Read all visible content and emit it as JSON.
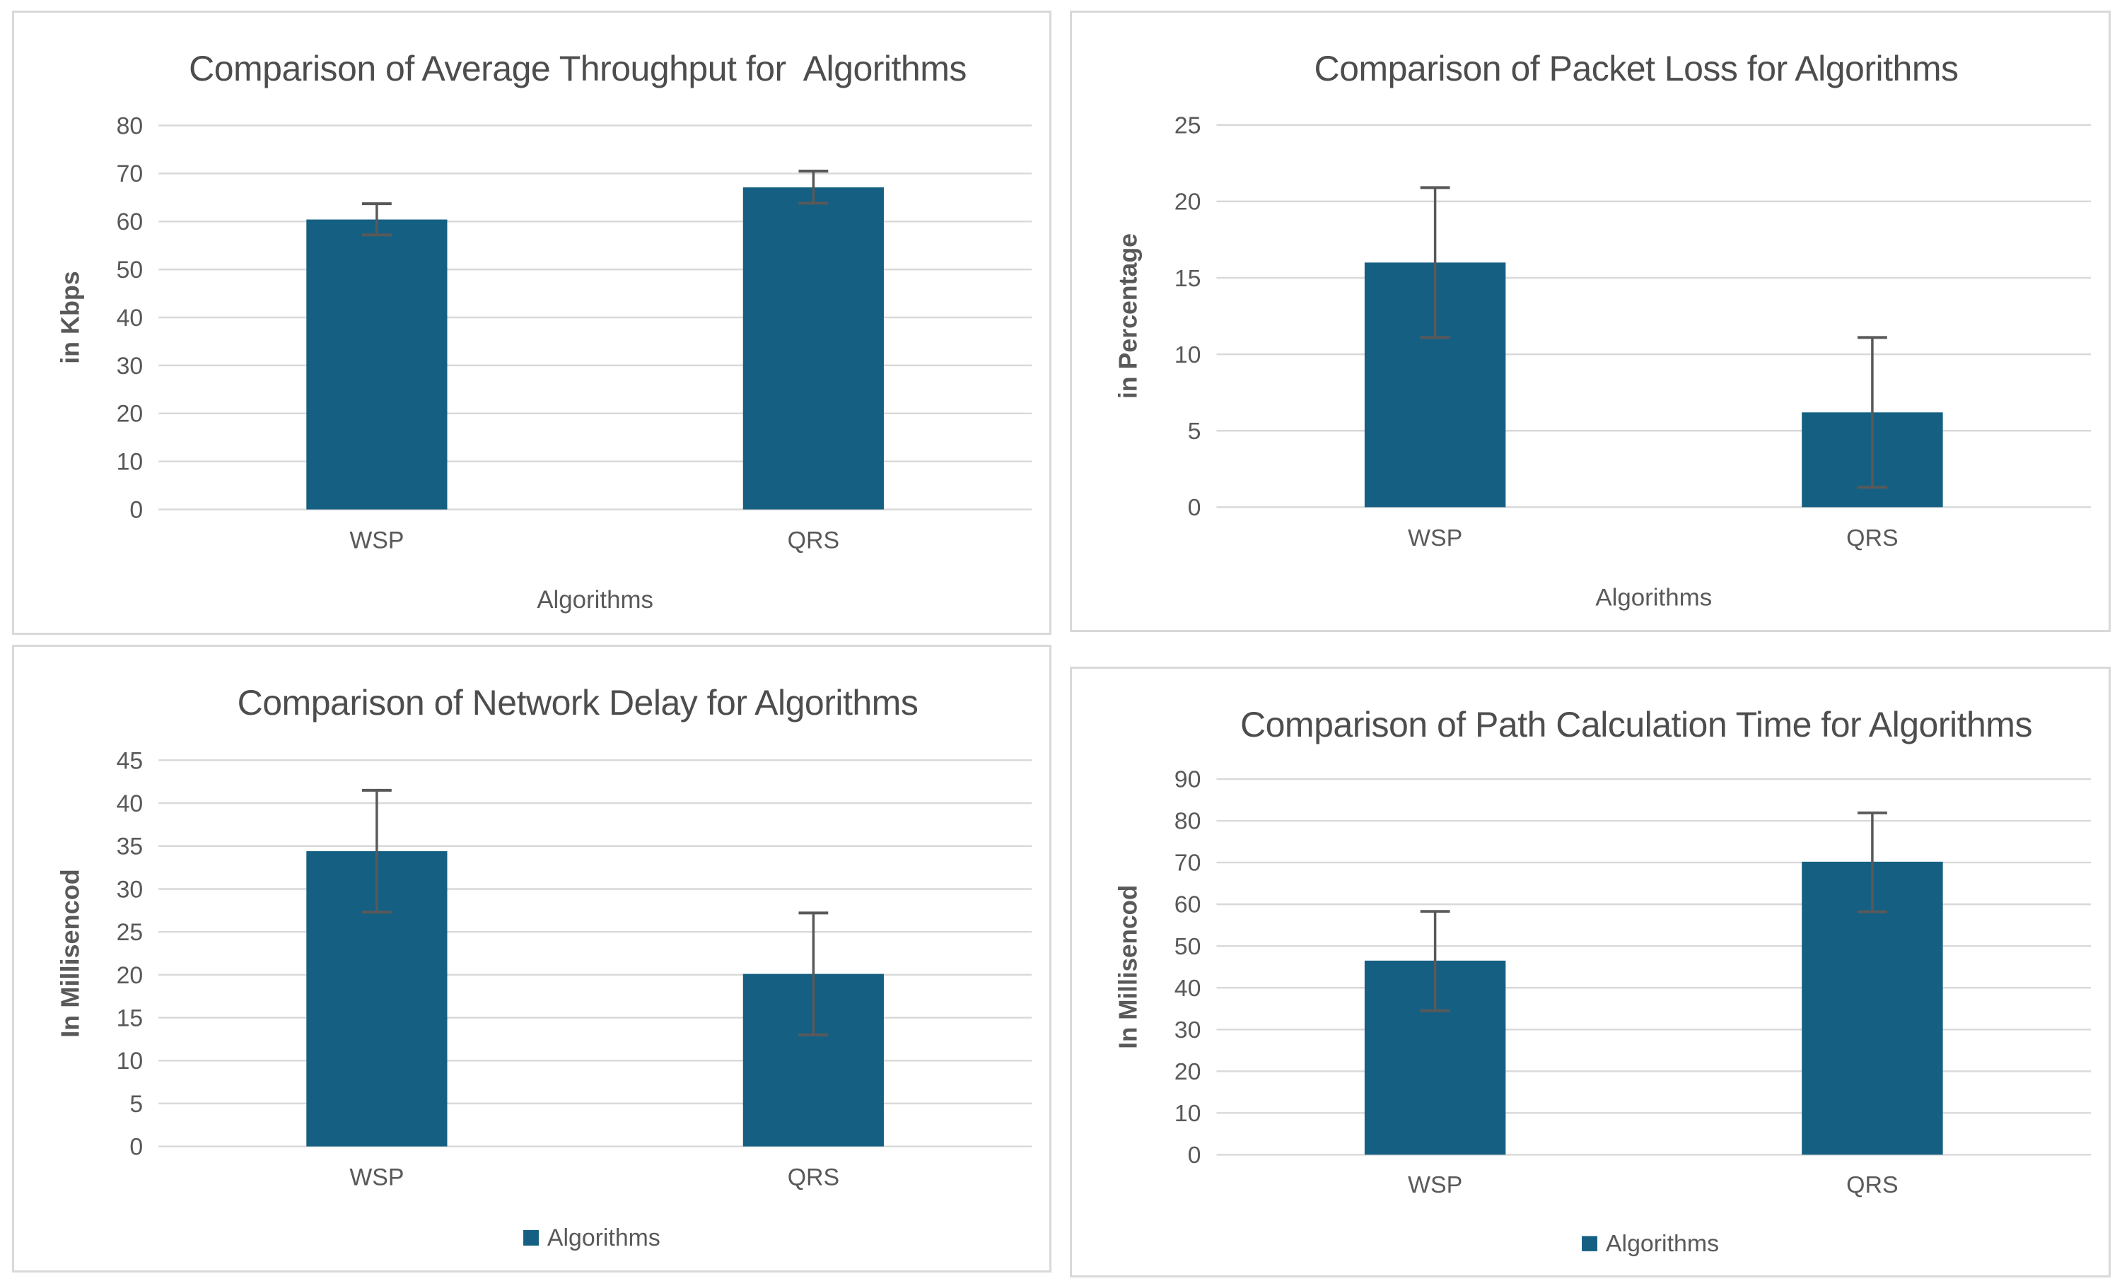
{
  "colors": {
    "bar": "#156082",
    "title_text": "#4d4d4d",
    "axis_text": "#595959",
    "gridline": "#d9d9d9",
    "error_bar": "#595959",
    "panel_border": "#d9d9d9",
    "panel_background": "#ffffff"
  },
  "chart_data": [
    {
      "type": "bar",
      "title": "Comparison of Average Throughput for  Algorithms",
      "categories": [
        "WSP",
        "QRS"
      ],
      "values": [
        60.4,
        67.1
      ],
      "error_plus": [
        3.3,
        3.4
      ],
      "error_minus": [
        3.2,
        3.3
      ],
      "xlabel": "Algorithms",
      "ylabel": "in Kbps",
      "ylim": [
        0,
        80
      ],
      "yticks": [
        0,
        10,
        20,
        30,
        40,
        50,
        60,
        70,
        80
      ],
      "grid": true,
      "legend": null
    },
    {
      "type": "bar",
      "title": "Comparison of Packet Loss for Algorithms",
      "categories": [
        "WSP",
        "QRS"
      ],
      "values": [
        16,
        6.2
      ],
      "error_plus": [
        4.9,
        4.9
      ],
      "error_minus": [
        4.9,
        4.9
      ],
      "xlabel": "Algorithms",
      "ylabel": "in Percentage",
      "ylim": [
        0,
        25
      ],
      "yticks": [
        0,
        5,
        10,
        15,
        20,
        25
      ],
      "grid": true,
      "legend": null
    },
    {
      "type": "bar",
      "title": "Comparison of Network Delay for Algorithms",
      "categories": [
        "WSP",
        "QRS"
      ],
      "values": [
        34.4,
        20.1
      ],
      "error_plus": [
        7.1,
        7.1
      ],
      "error_minus": [
        7.1,
        7.1
      ],
      "xlabel": null,
      "ylabel": "In Millisencod",
      "ylim": [
        0,
        45
      ],
      "yticks": [
        0,
        5,
        10,
        15,
        20,
        25,
        30,
        35,
        40,
        45
      ],
      "grid": true,
      "legend": "Algorithms",
      "legend_position": "bottom"
    },
    {
      "type": "bar",
      "title": "Comparison of Path Calculation Time for Algorithms",
      "categories": [
        "WSP",
        "QRS"
      ],
      "values": [
        46.5,
        70.2
      ],
      "error_plus": [
        11.8,
        11.7
      ],
      "error_minus": [
        12,
        12
      ],
      "xlabel": null,
      "ylabel": "In Millisencod",
      "ylim": [
        0,
        90
      ],
      "yticks": [
        0,
        10,
        20,
        30,
        40,
        50,
        60,
        70,
        80,
        90
      ],
      "grid": true,
      "legend": "Algorithms",
      "legend_position": "bottom"
    }
  ]
}
